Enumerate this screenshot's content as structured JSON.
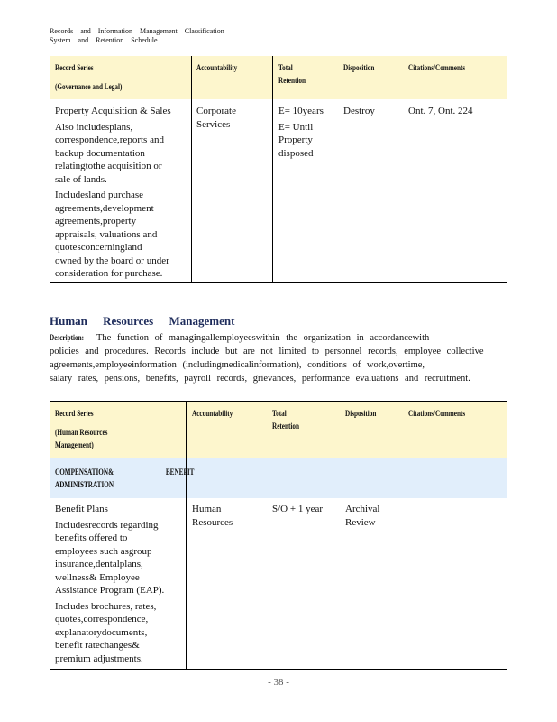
{
  "running_header": [
    "Records and Information Management Classification",
    "System and Retention Schedule"
  ],
  "table1": {
    "headers": {
      "record_series": [
        "Record Series",
        "(Governance and Legal)"
      ],
      "accountability": "Accountability",
      "total_retention": [
        "Total",
        "Retention"
      ],
      "disposition": "Disposition",
      "citations": "Citations/Comments"
    },
    "row": {
      "record_series": [
        "Property Acquisition & Sales",
        "Also includesplans,",
        "correspondence,reports and",
        "backup documentation",
        "relatingtothe acquisition or",
        "sale of lands.",
        "Includesland purchase",
        "agreements,development",
        "agreements,property",
        "appraisals, valuations and",
        "quotesconcerningland",
        "owned by the board or under",
        "consideration for purchase."
      ],
      "accountability": [
        "Corporate",
        "Services"
      ],
      "total_retention": [
        "E= 10years",
        "E= Until",
        "Property",
        "disposed"
      ],
      "disposition": "Destroy",
      "citations": "Ont. 7, Ont. 224"
    }
  },
  "section": {
    "title": "Human Resources Management",
    "description_label": "Description:",
    "description_lines": [
      "The function of managingallemployeeswithin the organization in accordancewith",
      "policies and procedures. Records include but are not limited to personnel records, employee collective",
      "agreements,employeeinformation (includingmedicalinformation), conditions of work,overtime,",
      "salary rates, pensions, benefits, payroll records, grievances, performance evaluations and recruitment."
    ]
  },
  "table2": {
    "headers": {
      "record_series": [
        "Record Series",
        "(Human Resources",
        "Management)"
      ],
      "accountability": "Accountability",
      "total_retention": [
        "Total",
        "Retention"
      ],
      "disposition": "Disposition",
      "citations": "Citations/Comments"
    },
    "subheader": [
      "COMPENSATION& BENEFIT",
      "ADMINISTRATION"
    ],
    "row": {
      "record_series": [
        "Benefit Plans",
        "Includesrecords regarding",
        "benefits offered to",
        "employees such asgroup",
        "insurance,dentalplans,",
        "wellness& Employee",
        "Assistance Program (EAP).",
        "Includes brochures, rates,",
        "quotes,correspondence,",
        "explanatorydocuments,",
        "benefit ratechanges&",
        "premium adjustments."
      ],
      "accountability": [
        "Human",
        "Resources"
      ],
      "total_retention": "S/O + 1 year",
      "disposition": [
        "Archival",
        "Review"
      ]
    }
  },
  "page_number": "- 38 -",
  "colors": {
    "header_fill": "#fdf6cd",
    "subheader_fill": "#e1eefb",
    "heading": "#1f2d5c"
  }
}
